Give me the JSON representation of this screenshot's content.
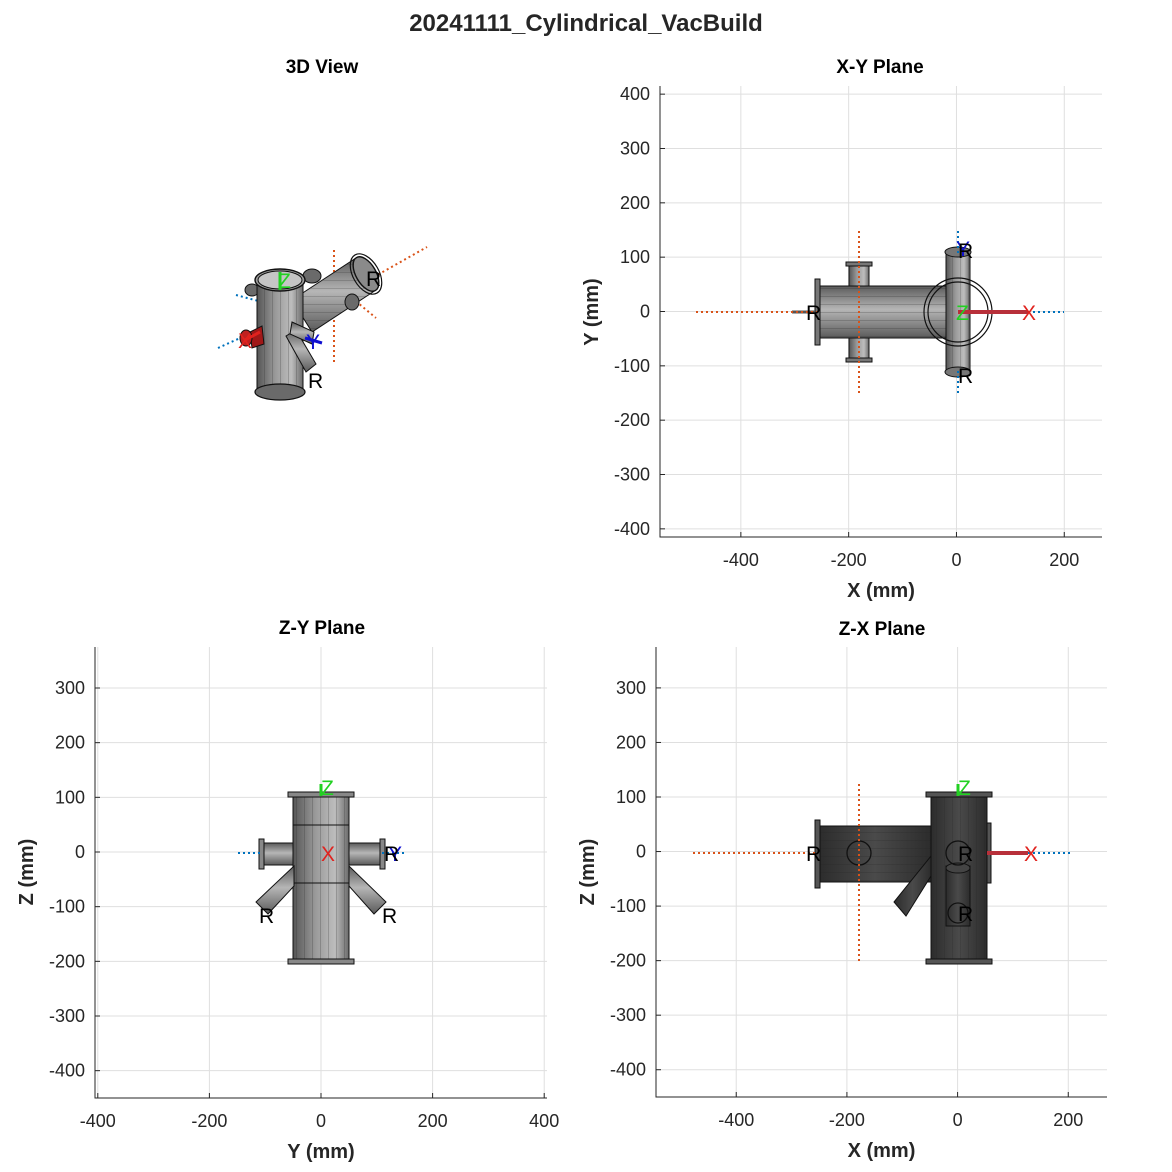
{
  "figure": {
    "title": "20241111_Cylindrical_VacBuild"
  },
  "colors": {
    "grid": "#dfdfdf",
    "axis": "#262626",
    "x_marker": "#e0221e",
    "y_marker": "#1010d0",
    "z_marker": "#22d022",
    "dotted_orange": "#d95319",
    "dotted_blue": "#0072bd",
    "body_dark": "#3a3a3a",
    "body_light": "#a8a8a8",
    "x_rod": "#b8303a"
  },
  "panels": {
    "view3d": {
      "title": "3D View",
      "labels": {
        "r1": "R",
        "r2": "R",
        "z": "Z",
        "x": "X",
        "y": "Y"
      }
    },
    "xy": {
      "title": "X-Y Plane",
      "xlabel": "X (mm)",
      "ylabel": "Y (mm)",
      "xticks": [
        -400,
        -200,
        0,
        200
      ],
      "yticks": [
        400,
        300,
        200,
        100,
        0,
        -100,
        -200,
        -300,
        -400
      ],
      "xlim": [
        -550,
        270
      ],
      "ylim": [
        -415,
        415
      ],
      "labels": {
        "x": "X",
        "y": "Y",
        "z": "Z",
        "r_top": "R",
        "r_bottom": "R",
        "r_left": "R"
      }
    },
    "zy": {
      "title": "Z-Y Plane",
      "xlabel": "Y (mm)",
      "ylabel": "Z (mm)",
      "xticks": [
        -400,
        -200,
        0,
        200,
        400
      ],
      "yticks": [
        300,
        200,
        100,
        0,
        -100,
        -200,
        -300,
        -400
      ],
      "xlim": [
        -405,
        405
      ],
      "ylim": [
        -450,
        375
      ],
      "labels": {
        "x": "X",
        "y": "Y",
        "z": "Z",
        "r_left": "R",
        "r_right": "R",
        "r_mid": "R"
      }
    },
    "zx": {
      "title": "Z-X Plane",
      "xlabel": "X (mm)",
      "ylabel": "Z (mm)",
      "xticks": [
        -400,
        -200,
        0,
        200
      ],
      "yticks": [
        300,
        200,
        100,
        0,
        -100,
        -200,
        -300,
        -400
      ],
      "xlim": [
        -545,
        270
      ],
      "ylim": [
        -450,
        375
      ],
      "labels": {
        "x": "X",
        "z": "Z",
        "r_left": "R",
        "r_mid": "R",
        "r_low": "R"
      }
    }
  }
}
